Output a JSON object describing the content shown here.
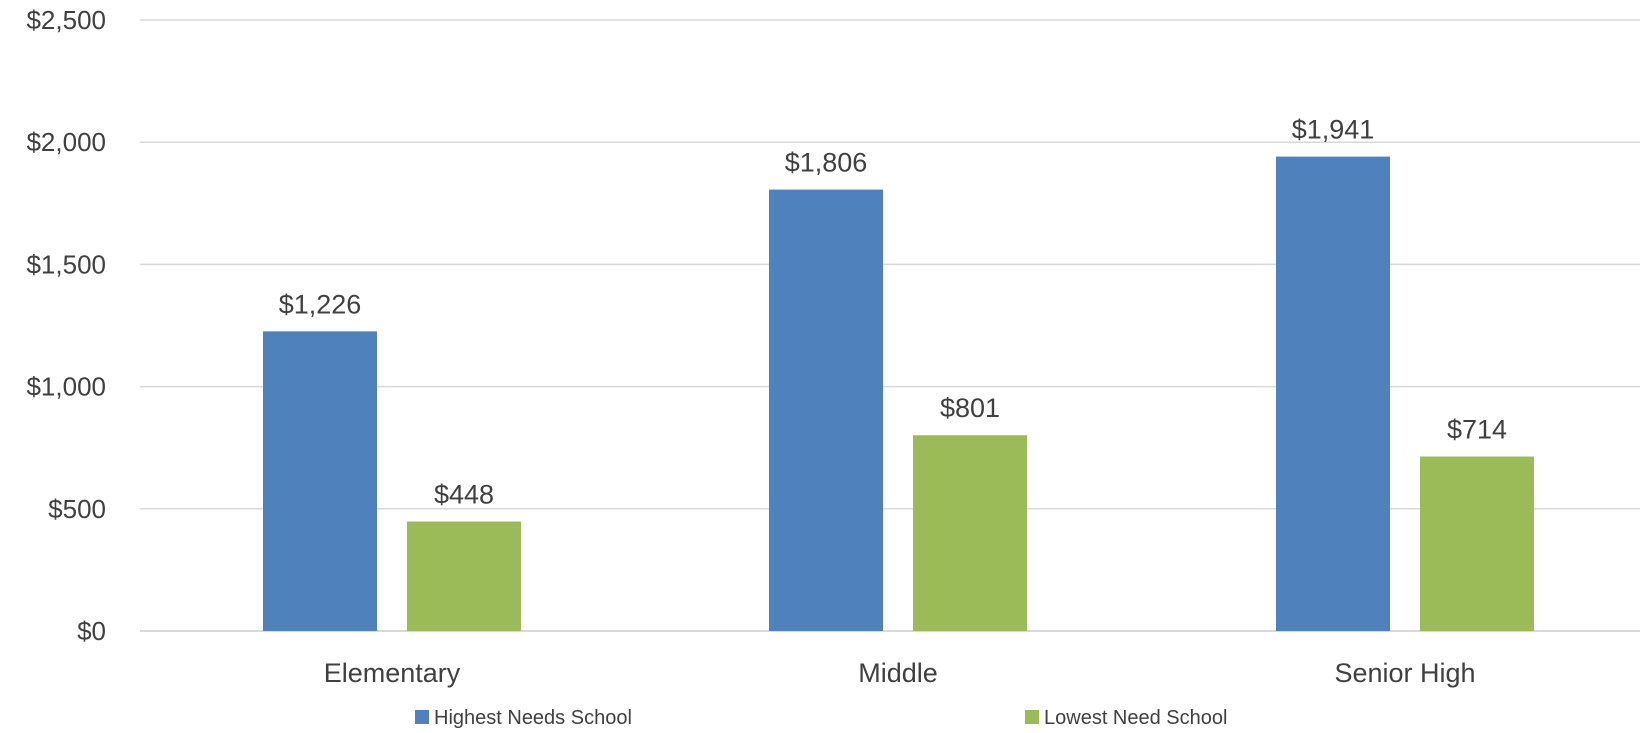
{
  "chart_data": {
    "type": "bar",
    "categories": [
      "Elementary",
      "Middle",
      "Senior High"
    ],
    "series": [
      {
        "name": "Highest Needs School",
        "values": [
          1226,
          1806,
          1941
        ],
        "color": "#4f81bd"
      },
      {
        "name": "Lowest Need School",
        "values": [
          448,
          801,
          714
        ],
        "color": "#9bbb59"
      }
    ],
    "data_labels": [
      [
        "$1,226",
        "$1,806",
        "$1,941"
      ],
      [
        "$448",
        "$801",
        "$714"
      ]
    ],
    "y_ticks": [
      0,
      500,
      1000,
      1500,
      2000,
      2500
    ],
    "y_tick_labels": [
      "$0",
      "$500",
      "$1,000",
      "$1,500",
      "$2,000",
      "$2,500"
    ],
    "ylim": [
      0,
      2500
    ],
    "grid": true,
    "legend_position": "bottom",
    "title": "",
    "xlabel": "",
    "ylabel": ""
  }
}
